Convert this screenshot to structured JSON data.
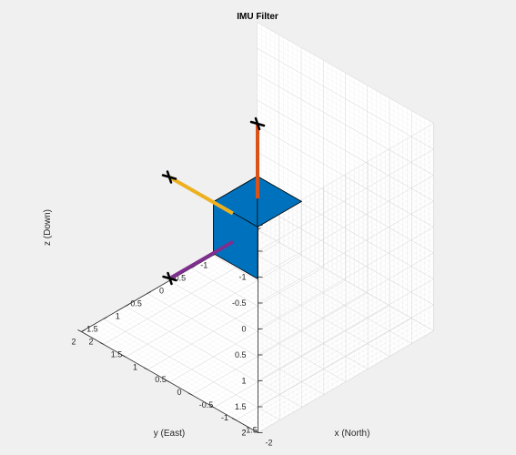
{
  "figure": {
    "background": "#f0f0f0"
  },
  "chart_data": {
    "type": "3d-scene",
    "title": "IMU Filter",
    "xlabel": "x (North)",
    "ylabel": "y (East)",
    "zlabel": "z (Down)",
    "xlim": [
      -2,
      2
    ],
    "ylim": [
      -2,
      2
    ],
    "zlim": [
      -2,
      2
    ],
    "z_direction": "reverse",
    "grid": true,
    "minor_grid": true,
    "x_ticks": [
      "-2",
      "-1.5",
      "-1",
      "-0.5",
      "0",
      "0.5",
      "1",
      "1.5",
      "2"
    ],
    "y_ticks": [
      "2",
      "1.5",
      "1",
      "0.5",
      "0",
      "-0.5",
      "-1",
      "-1.5",
      "-2"
    ],
    "z_ticks": [
      "-2",
      "-1.5",
      "-1",
      "-0.5",
      "0",
      "0.5",
      "1",
      "1.5",
      "2"
    ],
    "cuboid": {
      "center": [
        0,
        0,
        0
      ],
      "size": [
        1,
        1,
        1
      ],
      "color": "#0072bd"
    },
    "body_axes": [
      {
        "name": "x-axis",
        "color": "#edb120",
        "from": [
          0,
          0,
          0
        ],
        "to": [
          2,
          0,
          0
        ]
      },
      {
        "name": "y-axis",
        "color": "#7e2f8e",
        "from": [
          0,
          0,
          0
        ],
        "to": [
          0,
          2,
          0
        ]
      },
      {
        "name": "z-axis",
        "color": "#d95319",
        "from": [
          0,
          0,
          0
        ],
        "to": [
          0,
          0,
          -2
        ]
      }
    ],
    "colors": {
      "pane": "#ffffff",
      "grid": "#dcdcdc",
      "minor_grid": "#efefef",
      "frame": "#262626"
    }
  }
}
